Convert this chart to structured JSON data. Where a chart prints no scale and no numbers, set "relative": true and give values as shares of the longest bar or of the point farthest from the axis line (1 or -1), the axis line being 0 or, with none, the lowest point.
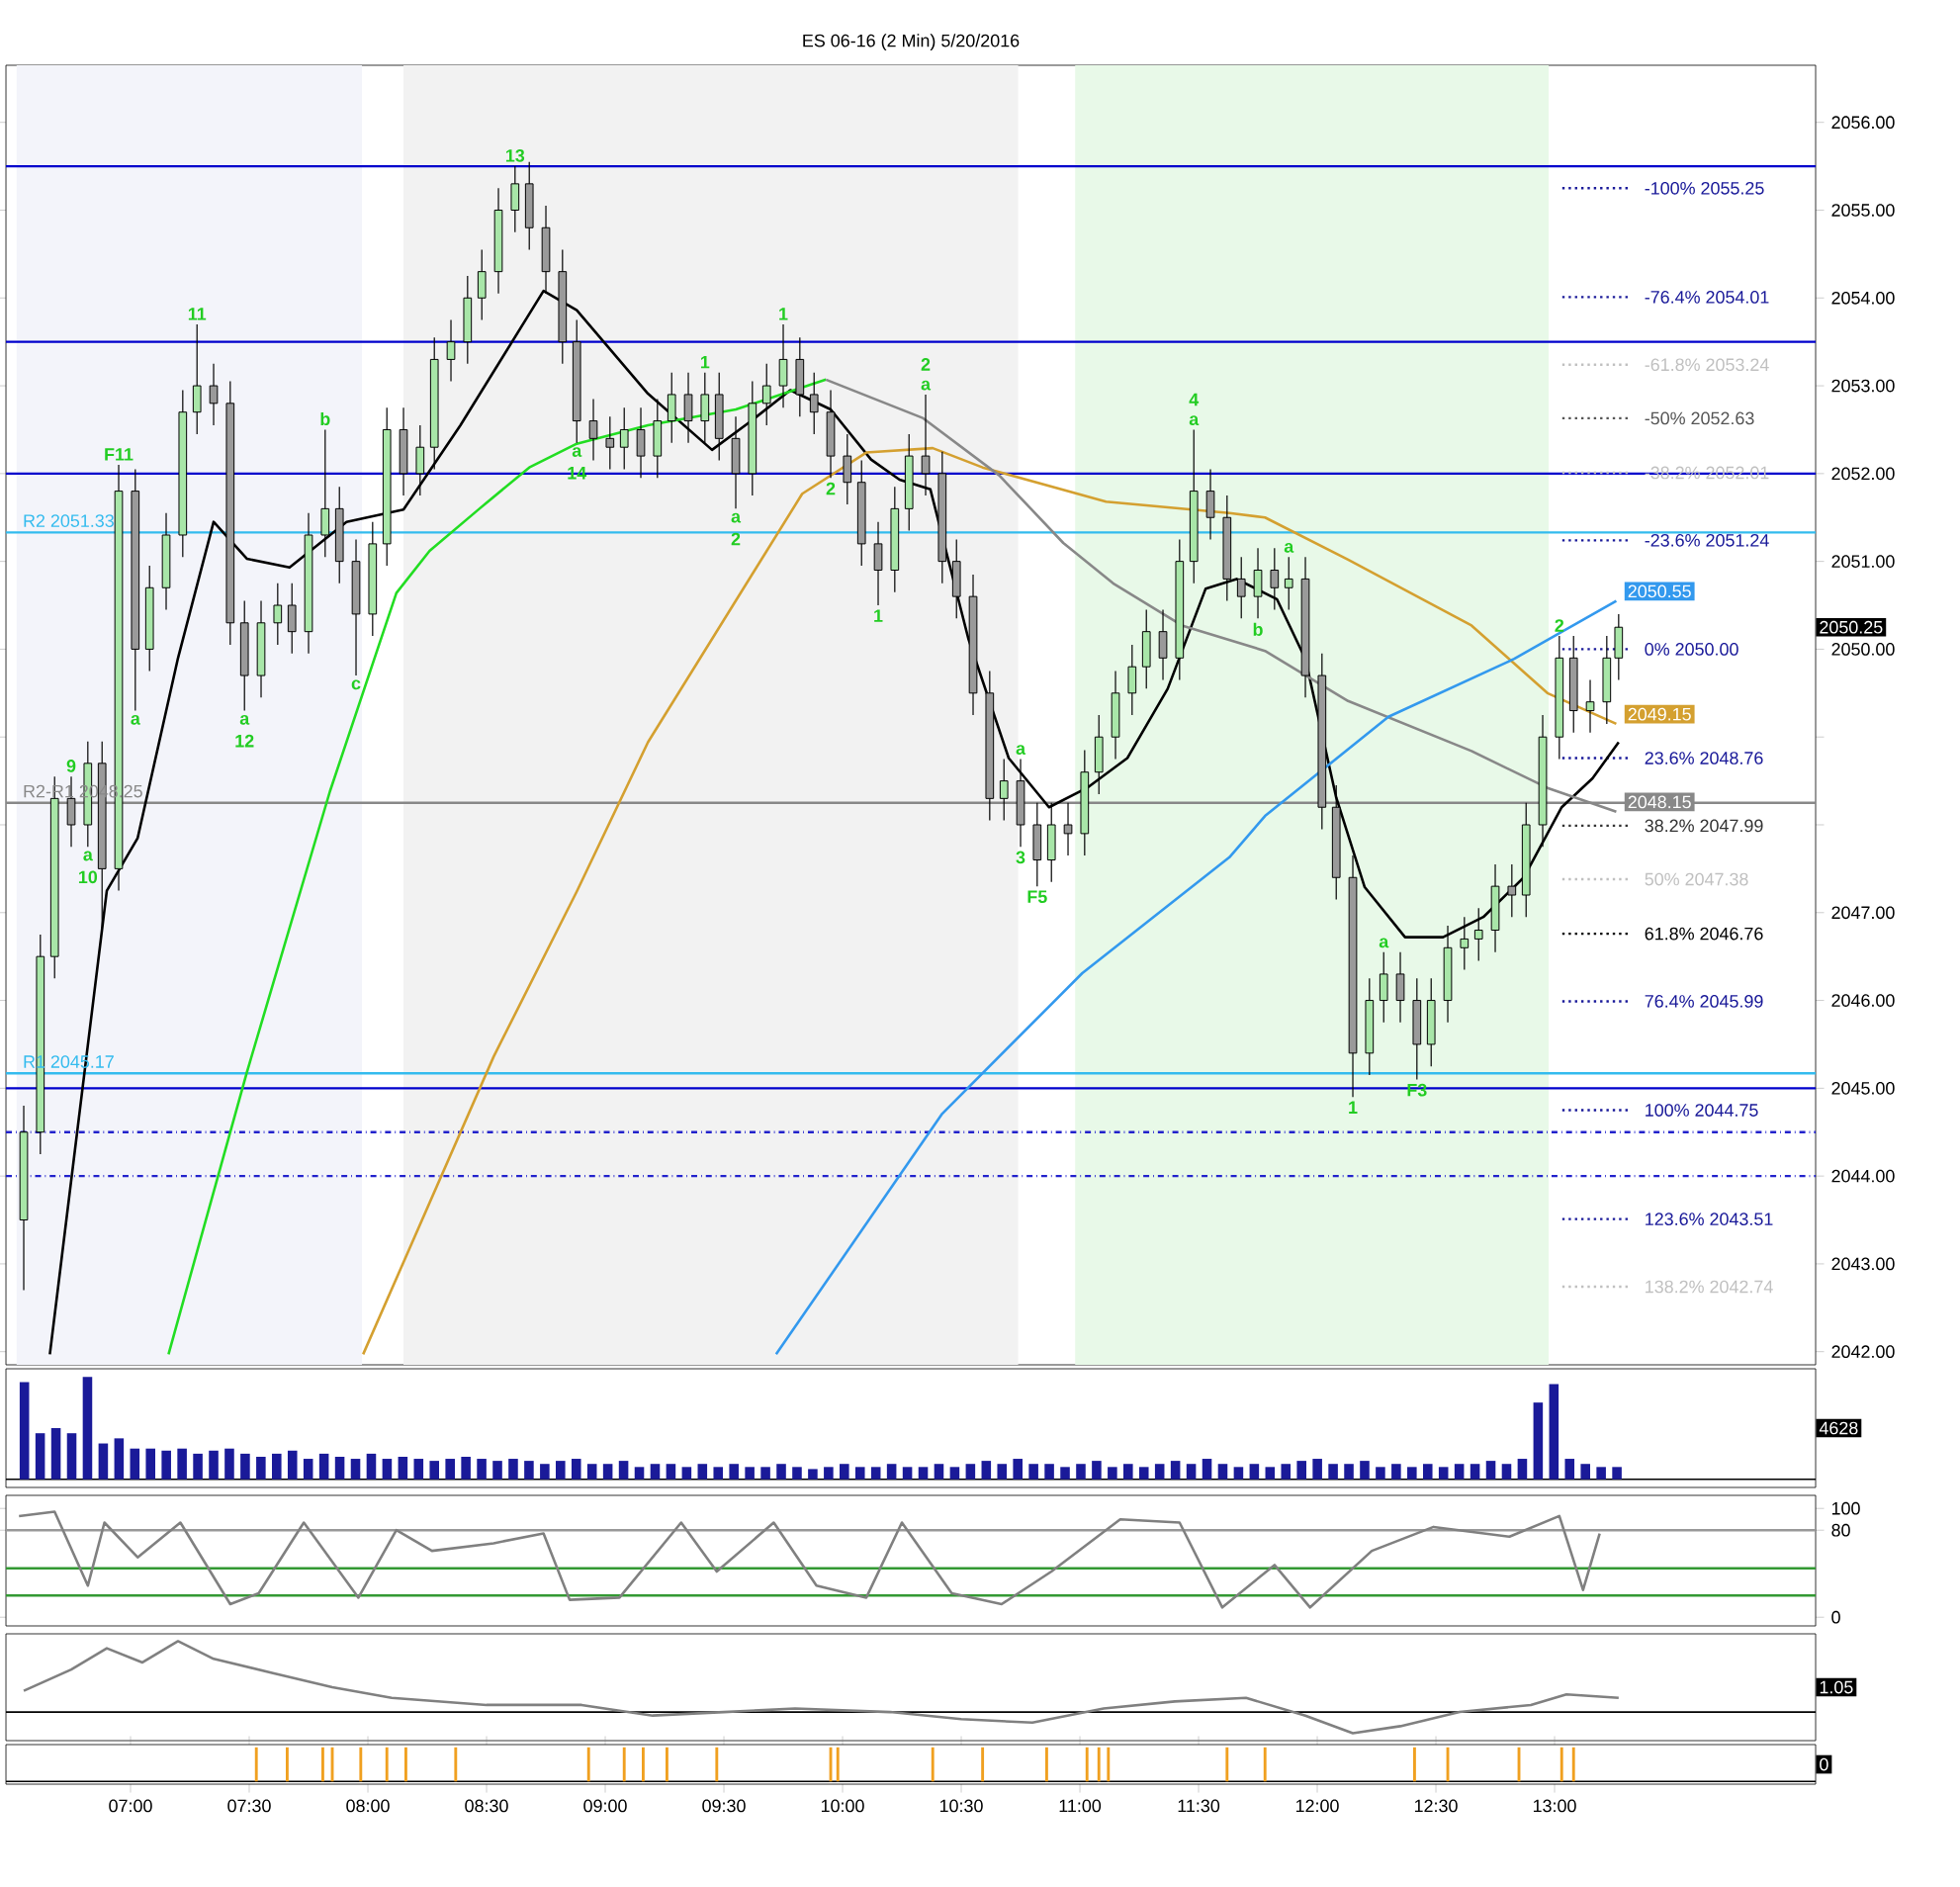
{
  "chart_data": [
    {
      "type": "candlestick",
      "title": "ES 06-16 (2 Min)  5/20/2016",
      "x": [
        6.55,
        6.62,
        6.68,
        6.75,
        6.82,
        6.88,
        6.95,
        7.02,
        7.08,
        7.15,
        7.22,
        7.28,
        7.35,
        7.42,
        7.48,
        7.55,
        7.62,
        7.68,
        7.75,
        7.82,
        7.88,
        7.95,
        8.02,
        8.08,
        8.15,
        8.22,
        8.28,
        8.35,
        8.42,
        8.48,
        8.55,
        8.62,
        8.68,
        8.75,
        8.82,
        8.88,
        8.95,
        9.02,
        9.08,
        9.15,
        9.22,
        9.28,
        9.35,
        9.42,
        9.48,
        9.55,
        9.62,
        9.68,
        9.75,
        9.82,
        9.88,
        9.95,
        10.02,
        10.08,
        10.15,
        10.22,
        10.28,
        10.35,
        10.42,
        10.48,
        10.55,
        10.62,
        10.68,
        10.75,
        10.82,
        10.88,
        10.95,
        11.02,
        11.08,
        11.15,
        11.22,
        11.28,
        11.35,
        11.42,
        11.48,
        11.55,
        11.62,
        11.68,
        11.75,
        11.82,
        11.88,
        11.95,
        12.02,
        12.08,
        12.15,
        12.22,
        12.28,
        12.35,
        12.42,
        12.48,
        12.55,
        12.62,
        12.68,
        12.75,
        12.82,
        12.88,
        12.95,
        13.02,
        13.08,
        13.15,
        13.22,
        13.27
      ],
      "ohlc": [
        [
          2043.5,
          2044.8,
          2042.7,
          2044.5
        ],
        [
          2044.5,
          2046.75,
          2044.25,
          2046.5
        ],
        [
          2046.5,
          2048.55,
          2046.25,
          2048.3
        ],
        [
          2048.3,
          2048.55,
          2047.75,
          2048.0
        ],
        [
          2048.0,
          2048.95,
          2047.75,
          2048.7
        ],
        [
          2048.7,
          2048.95,
          2046.8,
          2047.5
        ],
        [
          2047.5,
          2052.1,
          2047.25,
          2051.8
        ],
        [
          2051.8,
          2052.05,
          2049.3,
          2050.0
        ],
        [
          2050.0,
          2050.95,
          2049.75,
          2050.7
        ],
        [
          2050.7,
          2051.55,
          2050.45,
          2051.3
        ],
        [
          2051.3,
          2052.95,
          2051.05,
          2052.7
        ],
        [
          2052.7,
          2053.7,
          2052.45,
          2053.0
        ],
        [
          2053.0,
          2053.25,
          2052.55,
          2052.8
        ],
        [
          2052.8,
          2053.05,
          2050.05,
          2050.3
        ],
        [
          2050.3,
          2050.55,
          2049.3,
          2049.7
        ],
        [
          2049.7,
          2050.55,
          2049.45,
          2050.3
        ],
        [
          2050.3,
          2050.75,
          2050.05,
          2050.5
        ],
        [
          2050.5,
          2050.75,
          2049.95,
          2050.2
        ],
        [
          2050.2,
          2051.55,
          2049.95,
          2051.3
        ],
        [
          2051.3,
          2052.5,
          2051.05,
          2051.6
        ],
        [
          2051.6,
          2051.85,
          2050.75,
          2051.0
        ],
        [
          2051.0,
          2051.25,
          2049.7,
          2050.4
        ],
        [
          2050.4,
          2051.45,
          2050.15,
          2051.2
        ],
        [
          2051.2,
          2052.75,
          2050.95,
          2052.5
        ],
        [
          2052.5,
          2052.75,
          2051.75,
          2052.0
        ],
        [
          2052.0,
          2052.55,
          2051.75,
          2052.3
        ],
        [
          2052.3,
          2053.55,
          2052.05,
          2053.3
        ],
        [
          2053.3,
          2053.75,
          2053.05,
          2053.5
        ],
        [
          2053.5,
          2054.25,
          2053.25,
          2054.0
        ],
        [
          2054.0,
          2054.55,
          2053.75,
          2054.3
        ],
        [
          2054.3,
          2055.25,
          2054.05,
          2055.0
        ],
        [
          2055.0,
          2055.5,
          2054.75,
          2055.3
        ],
        [
          2055.3,
          2055.55,
          2054.55,
          2054.8
        ],
        [
          2054.8,
          2055.05,
          2054.05,
          2054.3
        ],
        [
          2054.3,
          2054.55,
          2053.25,
          2053.5
        ],
        [
          2053.5,
          2053.75,
          2052.35,
          2052.6
        ],
        [
          2052.6,
          2052.85,
          2052.15,
          2052.4
        ],
        [
          2052.4,
          2052.65,
          2052.05,
          2052.3
        ],
        [
          2052.3,
          2052.75,
          2052.05,
          2052.5
        ],
        [
          2052.5,
          2052.75,
          2051.95,
          2052.2
        ],
        [
          2052.2,
          2052.85,
          2051.95,
          2052.6
        ],
        [
          2052.6,
          2053.15,
          2052.35,
          2052.9
        ],
        [
          2052.9,
          2053.15,
          2052.35,
          2052.6
        ],
        [
          2052.6,
          2053.15,
          2052.35,
          2052.9
        ],
        [
          2052.9,
          2053.15,
          2052.15,
          2052.4
        ],
        [
          2052.4,
          2052.65,
          2051.6,
          2052.0
        ],
        [
          2052.0,
          2053.05,
          2051.75,
          2052.8
        ],
        [
          2052.8,
          2053.25,
          2052.55,
          2053.0
        ],
        [
          2053.0,
          2053.7,
          2052.75,
          2053.3
        ],
        [
          2053.3,
          2053.55,
          2052.65,
          2052.9
        ],
        [
          2052.9,
          2053.15,
          2052.45,
          2052.7
        ],
        [
          2052.7,
          2052.95,
          2051.95,
          2052.2
        ],
        [
          2052.2,
          2052.45,
          2051.65,
          2051.9
        ],
        [
          2051.9,
          2052.15,
          2050.95,
          2051.2
        ],
        [
          2051.2,
          2051.45,
          2050.5,
          2050.9
        ],
        [
          2050.9,
          2051.85,
          2050.65,
          2051.6
        ],
        [
          2051.6,
          2052.45,
          2051.35,
          2052.2
        ],
        [
          2052.2,
          2052.9,
          2051.75,
          2052.0
        ],
        [
          2052.0,
          2052.25,
          2050.75,
          2051.0
        ],
        [
          2051.0,
          2051.25,
          2050.35,
          2050.6
        ],
        [
          2050.6,
          2050.85,
          2049.25,
          2049.5
        ],
        [
          2049.5,
          2049.75,
          2048.05,
          2048.3
        ],
        [
          2048.3,
          2048.75,
          2048.05,
          2048.5
        ],
        [
          2048.5,
          2048.75,
          2047.75,
          2048.0
        ],
        [
          2048.0,
          2048.25,
          2047.3,
          2047.6
        ],
        [
          2047.6,
          2048.25,
          2047.35,
          2048.0
        ],
        [
          2048.0,
          2048.25,
          2047.65,
          2047.9
        ],
        [
          2047.9,
          2048.85,
          2047.65,
          2048.6
        ],
        [
          2048.6,
          2049.25,
          2048.35,
          2049.0
        ],
        [
          2049.0,
          2049.75,
          2048.75,
          2049.5
        ],
        [
          2049.5,
          2050.05,
          2049.25,
          2049.8
        ],
        [
          2049.8,
          2050.45,
          2049.55,
          2050.2
        ],
        [
          2050.2,
          2050.45,
          2049.65,
          2049.9
        ],
        [
          2049.9,
          2051.25,
          2049.65,
          2051.0
        ],
        [
          2051.0,
          2052.5,
          2050.75,
          2051.8
        ],
        [
          2051.8,
          2052.05,
          2051.25,
          2051.5
        ],
        [
          2051.5,
          2051.75,
          2050.55,
          2050.8
        ],
        [
          2050.8,
          2051.05,
          2050.35,
          2050.6
        ],
        [
          2050.6,
          2051.15,
          2050.35,
          2050.9
        ],
        [
          2050.9,
          2051.15,
          2050.45,
          2050.7
        ],
        [
          2050.7,
          2051.05,
          2050.45,
          2050.8
        ],
        [
          2050.8,
          2051.05,
          2049.45,
          2049.7
        ],
        [
          2049.7,
          2049.95,
          2047.95,
          2048.2
        ],
        [
          2048.2,
          2048.45,
          2047.15,
          2047.4
        ],
        [
          2047.4,
          2047.65,
          2044.9,
          2045.4
        ],
        [
          2045.4,
          2046.25,
          2045.15,
          2046.0
        ],
        [
          2046.0,
          2046.55,
          2045.75,
          2046.3
        ],
        [
          2046.3,
          2046.55,
          2045.75,
          2046.0
        ],
        [
          2046.0,
          2046.25,
          2045.1,
          2045.5
        ],
        [
          2045.5,
          2046.25,
          2045.25,
          2046.0
        ],
        [
          2046.0,
          2046.85,
          2045.75,
          2046.6
        ],
        [
          2046.6,
          2046.95,
          2046.35,
          2046.7
        ],
        [
          2046.7,
          2047.05,
          2046.45,
          2046.8
        ],
        [
          2046.8,
          2047.55,
          2046.55,
          2047.3
        ],
        [
          2047.3,
          2047.55,
          2046.95,
          2047.2
        ],
        [
          2047.2,
          2048.25,
          2046.95,
          2048.0
        ],
        [
          2048.0,
          2049.25,
          2047.75,
          2049.0
        ],
        [
          2049.0,
          2050.15,
          2048.75,
          2049.9
        ],
        [
          2049.9,
          2050.15,
          2049.05,
          2049.3
        ],
        [
          2049.3,
          2049.65,
          2049.05,
          2049.4
        ],
        [
          2049.4,
          2050.15,
          2049.15,
          2049.9
        ],
        [
          2049.9,
          2050.4,
          2049.65,
          2050.25
        ]
      ],
      "series": [
        {
          "type": "line",
          "color": "#000000",
          "x": [
            6.66,
            6.9,
            7.03,
            7.2,
            7.35,
            7.49,
            7.67,
            7.91,
            8.15,
            8.39,
            8.74,
            8.88,
            9.18,
            9.45,
            9.62,
            9.78,
            9.95,
            10.12,
            10.24,
            10.37,
            10.53,
            10.7,
            10.87,
            11.03,
            11.2,
            11.37,
            11.53,
            11.66,
            11.83,
            11.95,
            12.08,
            12.2,
            12.37,
            12.53,
            12.7,
            12.87,
            13.03,
            13.16,
            13.27
          ],
          "values": [
            2041.97,
            2047.25,
            2047.85,
            2049.9,
            2051.45,
            2051.03,
            2050.93,
            2051.45,
            2051.59,
            2052.55,
            2054.08,
            2053.86,
            2052.91,
            2052.27,
            2052.61,
            2052.95,
            2052.73,
            2052.16,
            2051.93,
            2051.82,
            2050.12,
            2048.76,
            2048.2,
            2048.42,
            2048.76,
            2049.55,
            2050.69,
            2050.8,
            2050.57,
            2049.89,
            2048.31,
            2047.29,
            2046.72,
            2046.72,
            2046.95,
            2047.4,
            2048.2,
            2048.53,
            2048.94
          ]
        },
        {
          "type": "line",
          "color": "#22dd22",
          "x": [
            7.16,
            7.49,
            7.84,
            8.12,
            8.26,
            8.47,
            8.68,
            8.88,
            9.18,
            9.55,
            9.93
          ],
          "values": [
            2041.97,
            2045.18,
            2048.38,
            2050.64,
            2051.12,
            2051.6,
            2052.07,
            2052.34,
            2052.55,
            2052.73,
            2053.07
          ]
        },
        {
          "type": "line",
          "color": "#d4a030",
          "x": [
            7.98,
            8.53,
            8.88,
            9.18,
            9.83,
            10.1,
            10.38,
            10.59,
            11.11,
            11.63,
            11.78,
            12.13,
            12.65,
            12.97,
            13.26
          ],
          "values": [
            2041.97,
            2045.36,
            2047.24,
            2048.94,
            2051.77,
            2052.24,
            2052.29,
            2052.07,
            2051.68,
            2051.55,
            2051.5,
            2051.02,
            2050.27,
            2049.5,
            2049.15
          ],
          "value_labels": [
            null,
            null,
            null,
            null,
            null,
            null,
            null,
            null,
            null,
            null,
            null,
            null,
            null,
            null,
            "2049.15"
          ]
        },
        {
          "type": "line",
          "color": "#888888",
          "x": [
            9.93,
            10.34,
            10.66,
            10.93,
            11.14,
            11.43,
            11.78,
            12.13,
            12.65,
            12.97,
            13.26
          ],
          "values": [
            2053.07,
            2052.63,
            2051.98,
            2051.21,
            2050.75,
            2050.27,
            2049.98,
            2049.41,
            2048.84,
            2048.42,
            2048.15
          ],
          "value_labels": [
            null,
            null,
            null,
            null,
            null,
            null,
            null,
            null,
            null,
            null,
            "2048.15"
          ]
        },
        {
          "type": "line",
          "color": "#3399ee",
          "x": [
            9.72,
            10.42,
            11.01,
            11.63,
            11.78,
            12.3,
            12.83,
            13.26
          ],
          "values": [
            2041.97,
            2044.71,
            2046.31,
            2047.63,
            2048.1,
            2049.23,
            2049.89,
            2050.55
          ],
          "value_labels": [
            null,
            null,
            null,
            null,
            null,
            null,
            null,
            "2050.55"
          ]
        }
      ],
      "bands": [
        {
          "axis": "x",
          "from": 6.52,
          "to": 7.975,
          "color": "#f3f4fa"
        },
        {
          "axis": "x",
          "from": 8.15,
          "to": 10.74,
          "color": "#f2f2f2"
        },
        {
          "axis": "x",
          "from": 10.98,
          "to": 12.975,
          "color": "#e8f9e8"
        }
      ],
      "ref_lines": [
        {
          "axis": "y",
          "value": 2055.5,
          "color": "#0000cc"
        },
        {
          "axis": "y",
          "value": 2053.5,
          "color": "#0000cc"
        },
        {
          "axis": "y",
          "value": 2052.0,
          "color": "#0000cc"
        },
        {
          "axis": "y",
          "value": 2045.0,
          "color": "#0000cc"
        },
        {
          "axis": "y",
          "value": 2051.33,
          "label": "R2 2051.33",
          "color": "#33bbee"
        },
        {
          "axis": "y",
          "value": 2048.25,
          "label": "R2-R1 2048.25",
          "color": "#888888"
        },
        {
          "axis": "y",
          "value": 2045.17,
          "label": "R1 2045.17",
          "color": "#33bbee"
        },
        {
          "axis": "y",
          "value": 2044.5,
          "color": "#2222cc",
          "line_style": "dashed"
        },
        {
          "axis": "y",
          "value": 2044.0,
          "color": "#2222cc",
          "line_style": "dashed"
        },
        {
          "axis": "y",
          "value": 2055.25,
          "label": "-100%  2055.25",
          "color": "#1a1a99",
          "line_style": "dotted"
        },
        {
          "axis": "y",
          "value": 2054.01,
          "label": "-76.4%  2054.01",
          "color": "#1a1a99",
          "line_style": "dotted"
        },
        {
          "axis": "y",
          "value": 2053.24,
          "label": "-61.8%  2053.24",
          "color": "#c0c0c0",
          "line_style": "dotted"
        },
        {
          "axis": "y",
          "value": 2052.63,
          "label": "-50%  2052.63",
          "color": "#555555",
          "line_style": "dotted"
        },
        {
          "axis": "y",
          "value": 2052.01,
          "label": "-38.2%  2052.01",
          "color": "#c0c0c0",
          "line_style": "dotted"
        },
        {
          "axis": "y",
          "value": 2051.24,
          "label": "-23.6%  2051.24",
          "color": "#1a1a99",
          "line_style": "dotted"
        },
        {
          "axis": "y",
          "value": 2050.0,
          "label": "0%  2050.00",
          "color": "#1a1a99",
          "line_style": "dotted"
        },
        {
          "axis": "y",
          "value": 2048.76,
          "label": "23.6%  2048.76",
          "color": "#1a1a99",
          "line_style": "dotted"
        },
        {
          "axis": "y",
          "value": 2047.99,
          "label": "38.2%  2047.99",
          "color": "#333333",
          "line_style": "dotted"
        },
        {
          "axis": "y",
          "value": 2047.38,
          "label": "50%  2047.38",
          "color": "#c0c0c0",
          "line_style": "dotted"
        },
        {
          "axis": "y",
          "value": 2046.76,
          "label": "61.8%  2046.76",
          "color": "#000000",
          "line_style": "dotted"
        },
        {
          "axis": "y",
          "value": 2045.99,
          "label": "76.4%  2045.99",
          "color": "#1a1a99",
          "line_style": "dotted"
        },
        {
          "axis": "y",
          "value": 2044.75,
          "label": "100%  2044.75",
          "color": "#1a1a99",
          "line_style": "dotted"
        },
        {
          "axis": "y",
          "value": 2043.51,
          "label": "123.6%  2043.51",
          "color": "#1a1a99",
          "line_style": "dotted"
        },
        {
          "axis": "y",
          "value": 2042.74,
          "label": "138.2%  2042.74",
          "color": "#c0c0c0",
          "line_style": "dotted"
        }
      ],
      "annotations": [
        {
          "text": "F11",
          "x": 6.95,
          "y": 2052.1
        },
        {
          "text": "11",
          "x": 7.28,
          "y": 2053.7
        },
        {
          "text": "9",
          "x": 6.75,
          "y": 2048.55
        },
        {
          "text": "a",
          "x": 6.82,
          "y": 2047.75
        },
        {
          "text": "10",
          "x": 6.82,
          "y": 2047.75
        },
        {
          "text": "a",
          "x": 7.02,
          "y": 2049.3
        },
        {
          "text": "a",
          "x": 7.48,
          "y": 2049.3
        },
        {
          "text": "12",
          "x": 7.48,
          "y": 2049.3
        },
        {
          "text": "b",
          "x": 7.82,
          "y": 2052.5
        },
        {
          "text": "c",
          "x": 7.95,
          "y": 2049.7
        },
        {
          "text": "13",
          "x": 8.62,
          "y": 2055.5
        },
        {
          "text": "a",
          "x": 8.88,
          "y": 2052.35
        },
        {
          "text": "14",
          "x": 8.88,
          "y": 2052.35
        },
        {
          "text": "1",
          "x": 9.42,
          "y": 2053.15
        },
        {
          "text": "a",
          "x": 9.55,
          "y": 2051.6
        },
        {
          "text": "2",
          "x": 9.55,
          "y": 2051.6
        },
        {
          "text": "1",
          "x": 9.75,
          "y": 2053.7
        },
        {
          "text": "2",
          "x": 9.95,
          "y": 2051.95
        },
        {
          "text": "1",
          "x": 10.15,
          "y": 2050.5
        },
        {
          "text": "a",
          "x": 10.35,
          "y": 2052.9
        },
        {
          "text": "2",
          "x": 10.35,
          "y": 2052.9
        },
        {
          "text": "a",
          "x": 10.75,
          "y": 2048.75
        },
        {
          "text": "3",
          "x": 10.75,
          "y": 2047.75
        },
        {
          "text": "F5",
          "x": 10.82,
          "y": 2047.3
        },
        {
          "text": "a",
          "x": 11.48,
          "y": 2052.5
        },
        {
          "text": "4",
          "x": 11.48,
          "y": 2052.5
        },
        {
          "text": "a",
          "x": 11.88,
          "y": 2051.05
        },
        {
          "text": "b",
          "x": 11.75,
          "y": 2050.35
        },
        {
          "text": "a",
          "x": 12.28,
          "y": 2046.55
        },
        {
          "text": "1",
          "x": 12.15,
          "y": 2044.9
        },
        {
          "text": "F3",
          "x": 12.42,
          "y": 2045.1
        },
        {
          "text": "2",
          "x": 13.02,
          "y": 2050.15
        },
        "2050.25"
      ],
      "xlim": [
        6.475,
        14.1
      ],
      "ylim": [
        2041.85,
        2056.65
      ],
      "yticks": [
        {
          "value": 2042,
          "label": "2042.00"
        },
        {
          "value": 2043,
          "label": "2043.00"
        },
        {
          "value": 2044,
          "label": "2044.00"
        },
        {
          "value": 2045,
          "label": "2045.00"
        },
        {
          "value": 2046,
          "label": "2046.00"
        },
        {
          "value": 2047,
          "label": "2047.00"
        },
        {
          "value": 2048,
          "label": null
        },
        {
          "value": 2049,
          "label": null
        },
        {
          "value": 2050,
          "label": "2050.00"
        },
        {
          "value": 2051,
          "label": "2051.00"
        },
        {
          "value": 2052,
          "label": "2052.00"
        },
        {
          "value": 2053,
          "label": "2053.00"
        },
        {
          "value": 2054,
          "label": "2054.00"
        },
        {
          "value": 2055,
          "label": "2055.00"
        },
        {
          "value": 2056,
          "label": "2056.00"
        }
      ],
      "tick_labels": "y"
    },
    {
      "type": "bar",
      "relative": true,
      "color": "#1a1a99",
      "tick_labels": false,
      "categories": [
        null,
        null,
        null,
        null,
        null,
        null,
        null,
        null,
        null,
        null,
        null,
        null,
        null,
        null,
        null,
        null,
        null,
        null,
        null,
        null,
        null,
        null,
        null,
        null,
        null,
        null,
        null,
        null,
        null,
        null,
        null,
        null,
        null,
        null,
        null,
        null,
        null,
        null,
        null,
        null,
        null,
        null,
        null,
        null,
        null,
        null,
        null,
        null,
        null,
        null,
        null,
        null,
        null,
        null,
        null,
        null,
        null,
        null,
        null,
        null,
        null,
        null,
        null,
        null,
        null,
        null,
        null,
        null,
        null,
        null,
        null,
        null,
        null,
        null,
        null,
        null,
        null,
        null,
        null,
        null,
        null,
        null,
        null,
        null,
        null,
        null,
        null,
        null,
        null,
        null,
        null,
        null,
        null,
        null,
        null,
        null,
        null,
        null,
        null,
        null,
        null,
        null
      ],
      "values": [
        0.95,
        0.45,
        0.5,
        0.45,
        1.0,
        0.35,
        0.4,
        0.3,
        0.3,
        0.28,
        0.3,
        0.25,
        0.28,
        0.3,
        0.25,
        0.22,
        0.25,
        0.28,
        0.2,
        0.25,
        0.22,
        0.2,
        0.25,
        0.2,
        0.22,
        0.2,
        0.18,
        0.2,
        0.22,
        0.2,
        0.18,
        0.2,
        0.18,
        0.15,
        0.18,
        0.2,
        0.15,
        0.15,
        0.18,
        0.12,
        0.15,
        0.15,
        0.12,
        0.15,
        0.12,
        0.15,
        0.12,
        0.12,
        0.15,
        0.12,
        0.1,
        0.12,
        0.15,
        0.12,
        0.12,
        0.15,
        0.12,
        0.12,
        0.15,
        0.12,
        0.15,
        0.18,
        0.15,
        0.2,
        0.15,
        0.15,
        0.12,
        0.15,
        0.18,
        0.12,
        0.15,
        0.12,
        0.15,
        0.18,
        0.15,
        0.2,
        0.15,
        0.12,
        0.15,
        0.12,
        0.15,
        0.18,
        0.2,
        0.15,
        0.15,
        0.18,
        0.12,
        0.15,
        0.12,
        0.15,
        0.12,
        0.15,
        0.15,
        0.18,
        0.15,
        0.2,
        0.75,
        0.93,
        0.2,
        0.15,
        0.12,
        0.12
      ],
      "annotations": [
        "4628"
      ]
    },
    {
      "type": "line",
      "tick_labels": "y",
      "xlim": [
        6.475,
        14.1
      ],
      "ylim": [
        -8,
        112
      ],
      "yticks": [
        0,
        80,
        100
      ],
      "series": [
        {
          "color": "#808080",
          "x": [
            6.53,
            6.68,
            6.82,
            6.89,
            7.03,
            7.21,
            7.42,
            7.54,
            7.73,
            7.96,
            8.12,
            8.27,
            8.53,
            8.74,
            8.85,
            9.06,
            9.32,
            9.47,
            9.71,
            9.89,
            10.1,
            10.25,
            10.46,
            10.67,
            10.88,
            11.17,
            11.42,
            11.6,
            11.82,
            11.97,
            12.23,
            12.49,
            12.81,
            13.02,
            13.12,
            13.19
          ],
          "values": [
            93,
            97,
            29,
            87,
            55,
            87,
            12,
            22,
            87,
            18,
            80,
            61,
            68,
            77,
            16,
            18,
            87,
            42,
            87,
            29,
            18,
            87,
            22,
            12,
            42,
            90,
            87,
            9,
            48,
            9,
            61,
            83,
            74,
            93,
            25,
            77
          ]
        }
      ],
      "ref_lines": [
        {
          "axis": "y",
          "value": 80,
          "color": "#999999"
        },
        {
          "axis": "y",
          "value": 45,
          "color": "#339933"
        },
        {
          "axis": "y",
          "value": 20,
          "color": "#339933"
        }
      ]
    },
    {
      "type": "line",
      "relative": true,
      "tick_labels": false,
      "xlim": [
        6.475,
        14.1
      ],
      "series": [
        {
          "color": "#808080",
          "x": [
            6.55,
            6.75,
            6.9,
            7.05,
            7.2,
            7.35,
            7.6,
            7.85,
            8.1,
            8.5,
            8.9,
            9.2,
            9.5,
            9.8,
            10.2,
            10.5,
            10.8,
            11.1,
            11.4,
            11.7,
            11.95,
            12.15,
            12.35,
            12.6,
            12.9,
            13.05,
            13.27
          ],
          "values": [
            0.3,
            0.6,
            0.9,
            0.7,
            1.0,
            0.75,
            0.55,
            0.35,
            0.2,
            0.1,
            0.1,
            -0.05,
            0.0,
            0.05,
            0.0,
            -0.1,
            -0.15,
            0.05,
            0.15,
            0.2,
            -0.05,
            -0.3,
            -0.2,
            0.0,
            0.1,
            0.25,
            0.2
          ]
        }
      ],
      "annotations": [
        "1.05"
      ]
    },
    {
      "type": "bar",
      "relative": true,
      "color": "#f0a020",
      "tick_labels": "x",
      "xlim": [
        6.475,
        14.1
      ],
      "x": [
        7.53,
        7.66,
        7.81,
        7.85,
        7.97,
        8.08,
        8.16,
        8.37,
        8.93,
        9.08,
        9.16,
        9.26,
        9.47,
        9.95,
        9.98,
        10.38,
        10.59,
        10.86,
        11.03,
        11.08,
        11.12,
        11.62,
        11.78,
        12.41,
        12.55,
        12.85,
        13.03,
        13.08
      ],
      "values": [
        1,
        1,
        1,
        1,
        1,
        1,
        1,
        1,
        1,
        1,
        1,
        1,
        1,
        1,
        1,
        1,
        1,
        1,
        1,
        1,
        1,
        1,
        1,
        1,
        1,
        1,
        1,
        1
      ],
      "xticks": [
        {
          "value": 7,
          "label": "07:00"
        },
        {
          "value": 7.5,
          "label": "07:30"
        },
        {
          "value": 8,
          "label": "08:00"
        },
        {
          "value": 8.5,
          "label": "08:30"
        },
        {
          "value": 9,
          "label": "09:00"
        },
        {
          "value": 9.5,
          "label": "09:30"
        },
        {
          "value": 10,
          "label": "10:00"
        },
        {
          "value": 10.5,
          "label": "10:30"
        },
        {
          "value": 11,
          "label": "11:00"
        },
        {
          "value": 11.5,
          "label": "11:30"
        },
        {
          "value": 12,
          "label": "12:00"
        },
        {
          "value": 12.5,
          "label": "12:30"
        },
        {
          "value": 13,
          "label": "13:00"
        }
      ],
      "annotations": [
        "0"
      ]
    }
  ]
}
